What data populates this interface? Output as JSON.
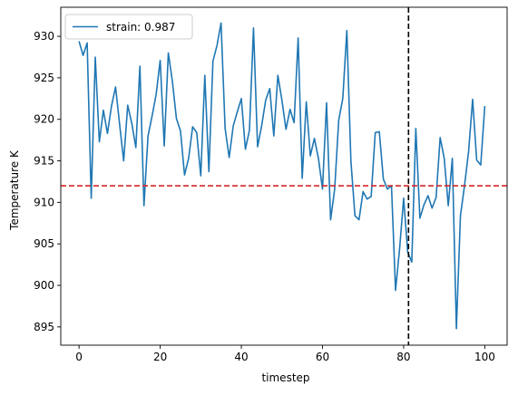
{
  "chart_data": {
    "type": "line",
    "title": "",
    "xlabel": "timestep",
    "ylabel": "Temperature K",
    "xlim": [
      -4.5,
      105.5
    ],
    "ylim": [
      892.8,
      933.5
    ],
    "grid": false,
    "legend_placement": "top-left",
    "x_ticks": [
      0,
      20,
      40,
      60,
      80,
      100
    ],
    "y_ticks": [
      895,
      900,
      905,
      910,
      915,
      920,
      925,
      930
    ],
    "series": [
      {
        "name": "strain: 0.987",
        "color": "#1f77b4",
        "x": [
          0,
          1,
          2,
          3,
          4,
          5,
          6,
          7,
          8,
          9,
          10,
          11,
          12,
          13,
          14,
          15,
          16,
          17,
          18,
          19,
          20,
          21,
          22,
          23,
          24,
          25,
          26,
          27,
          28,
          29,
          30,
          31,
          32,
          33,
          34,
          35,
          36,
          37,
          38,
          39,
          40,
          41,
          42,
          43,
          44,
          45,
          46,
          47,
          48,
          49,
          50,
          51,
          52,
          53,
          54,
          55,
          56,
          57,
          58,
          59,
          60,
          61,
          62,
          63,
          64,
          65,
          66,
          67,
          68,
          69,
          70,
          71,
          72,
          73,
          74,
          75,
          76,
          77,
          78,
          79,
          80,
          81,
          82,
          83,
          84,
          85,
          86,
          87,
          88,
          89,
          90,
          91,
          92,
          93,
          94,
          95,
          96,
          97,
          98,
          99,
          100
        ],
        "y": [
          929.4,
          927.7,
          929.2,
          910.5,
          927.5,
          917.3,
          921.1,
          918.3,
          921.6,
          923.9,
          919.4,
          915.0,
          921.7,
          919.5,
          916.6,
          926.4,
          909.6,
          918.0,
          920.4,
          923.0,
          927.1,
          916.8,
          928.0,
          924.6,
          920.1,
          918.6,
          913.3,
          915.3,
          919.1,
          918.4,
          913.2,
          925.3,
          913.7,
          927.0,
          928.9,
          931.6,
          918.9,
          915.4,
          919.2,
          920.9,
          922.5,
          916.4,
          918.7,
          931.0,
          916.7,
          919.2,
          922.3,
          923.7,
          918.0,
          925.3,
          922.3,
          918.8,
          921.2,
          919.6,
          929.8,
          912.9,
          922.1,
          915.6,
          917.7,
          915.3,
          911.6,
          922.0,
          907.9,
          911.6,
          919.9,
          922.5,
          930.7,
          915.0,
          908.4,
          907.9,
          911.3,
          910.4,
          910.7,
          918.4,
          918.5,
          912.8,
          911.6,
          912.0,
          899.4,
          904.4,
          910.5,
          904.0,
          902.8,
          918.9,
          908.1,
          909.7,
          910.8,
          909.3,
          910.6,
          917.8,
          915.3,
          909.6,
          915.3,
          894.8,
          908.4,
          912.0,
          916.1,
          922.4,
          915.1,
          914.5,
          921.6
        ]
      }
    ],
    "annotations": [
      {
        "kind": "hline",
        "value": 912.0,
        "color": "#d62728",
        "style": "dashed"
      },
      {
        "kind": "vline",
        "value": 81.2,
        "color": "#000000",
        "style": "dashed"
      }
    ]
  }
}
